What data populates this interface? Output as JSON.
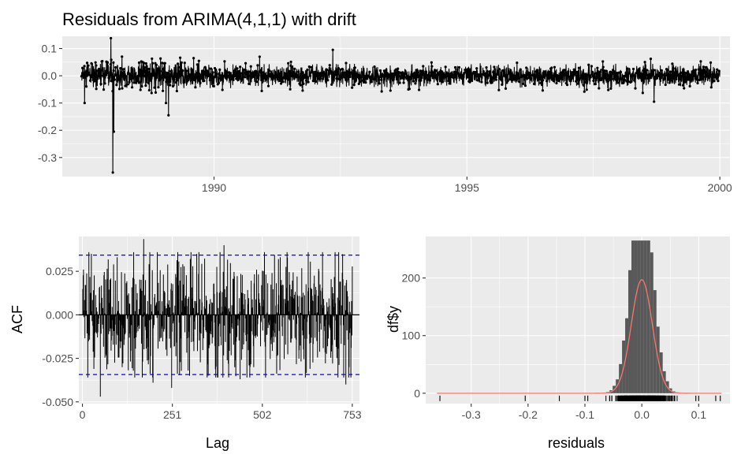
{
  "colors": {
    "panel_bg": "#ebebeb",
    "grid_major": "#ffffff",
    "line": "#000000",
    "confidence_band": "#0000ff",
    "histogram_fill": "#595959",
    "density_line": "#f8766d",
    "tick_text": "#4d4d4d"
  },
  "chart_data": [
    {
      "type": "line",
      "title": "Residuals from ARIMA(4,1,1) with drift",
      "xlabel": "",
      "ylabel": "",
      "xlim": [
        1987.0,
        2000.2
      ],
      "ylim": [
        -0.37,
        0.145
      ],
      "x_ticks": [
        1990,
        1995,
        2000
      ],
      "x_tick_labels": [
        "1990",
        "1995",
        "2000"
      ],
      "y_ticks": [
        0.1,
        0.0,
        -0.1,
        -0.2,
        -0.3
      ],
      "y_tick_labels": [
        "0.1",
        "0.0",
        "-0.1",
        "-0.2",
        "-0.3"
      ],
      "markers": true,
      "n_points": 3280,
      "x_start": 1987.38,
      "x_end": 2000.0,
      "noise_sd": 0.018,
      "notable_points": [
        {
          "x": 1987.44,
          "y": 0.1
        },
        {
          "x": 1987.44,
          "y": -0.1
        },
        {
          "x": 1987.96,
          "y": 0.138
        },
        {
          "x": 1988.0,
          "y": -0.355
        },
        {
          "x": 1988.02,
          "y": -0.205
        },
        {
          "x": 1989.1,
          "y": -0.145
        },
        {
          "x": 1989.05,
          "y": -0.1
        },
        {
          "x": 1992.35,
          "y": 0.095
        },
        {
          "x": 1990.9,
          "y": 0.07
        },
        {
          "x": 1998.7,
          "y": -0.095
        }
      ]
    },
    {
      "type": "bar",
      "title": "",
      "xlabel": "Lag",
      "ylabel": "ACF",
      "xlim": [
        -10,
        773
      ],
      "ylim": [
        -0.051,
        0.045
      ],
      "x_ticks": [
        0,
        251,
        502,
        753
      ],
      "x_tick_labels": [
        "0",
        "251",
        "502",
        "753"
      ],
      "y_ticks": [
        0.025,
        0.0,
        -0.025,
        -0.05
      ],
      "y_tick_labels": [
        "0.025",
        "0.000",
        "-0.025",
        "-0.050"
      ],
      "n_lags": 753,
      "confidence_bound": 0.0343,
      "notable_lags": [
        {
          "lag": 3,
          "acf": 0.026
        },
        {
          "lag": 50,
          "acf": -0.047
        },
        {
          "lag": 171,
          "acf": 0.0435
        },
        {
          "lag": 197,
          "acf": -0.039
        },
        {
          "lag": 249,
          "acf": -0.042
        },
        {
          "lag": 395,
          "acf": 0.04
        },
        {
          "lag": 440,
          "acf": -0.037
        },
        {
          "lag": 705,
          "acf": 0.036
        },
        {
          "lag": 735,
          "acf": -0.04
        }
      ]
    },
    {
      "type": "bar",
      "title": "",
      "xlabel": "residuals",
      "ylabel": "df$y",
      "xlim": [
        -0.38,
        0.155
      ],
      "ylim": [
        -18,
        272
      ],
      "x_ticks": [
        -0.3,
        -0.2,
        -0.1,
        0.0,
        0.1
      ],
      "x_tick_labels": [
        "-0.3",
        "-0.2",
        "-0.1",
        "0.0",
        "0.1"
      ],
      "y_ticks": [
        0,
        100,
        200
      ],
      "y_tick_labels": [
        "0",
        "100",
        "200"
      ],
      "histogram": {
        "peak_count": 262,
        "bin_width": 0.0055,
        "sd": 0.0183,
        "total": 3280
      },
      "density_curve": {
        "mean": 0.0,
        "sd": 0.0185,
        "peak": 197
      },
      "rug": true
    }
  ]
}
